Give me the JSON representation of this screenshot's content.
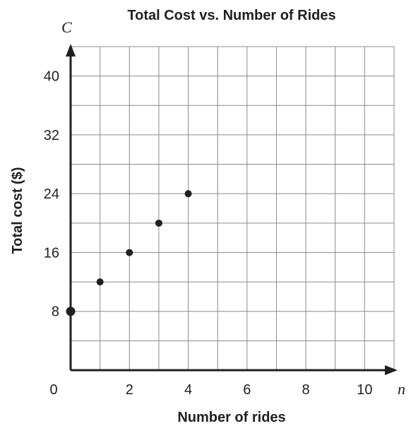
{
  "chart_data": {
    "type": "scatter",
    "title": "Total Cost vs. Number of Rides",
    "xlabel": "Number of rides",
    "ylabel": "Total cost ($)",
    "x_var": "n",
    "y_var": "C",
    "xlim": [
      0,
      11
    ],
    "ylim": [
      0,
      44
    ],
    "x_ticks": [
      0,
      2,
      4,
      6,
      8,
      10
    ],
    "y_ticks": [
      8,
      16,
      24,
      32,
      40
    ],
    "x_grid_step": 1,
    "y_grid_step": 4,
    "grid": true,
    "points": [
      {
        "x": 0,
        "y": 8
      },
      {
        "x": 1,
        "y": 12
      },
      {
        "x": 2,
        "y": 16
      },
      {
        "x": 3,
        "y": 20
      },
      {
        "x": 4,
        "y": 24
      }
    ]
  }
}
